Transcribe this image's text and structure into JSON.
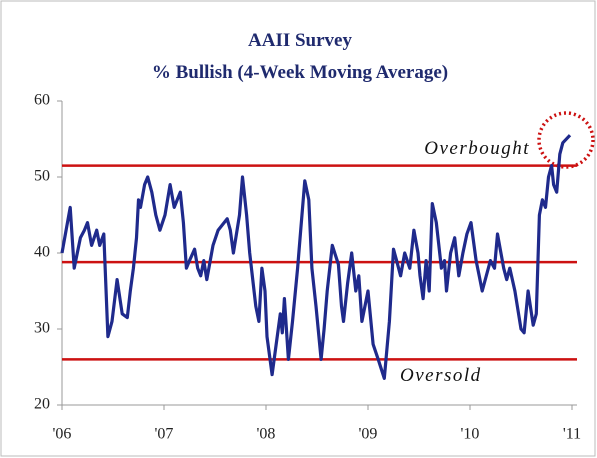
{
  "chart_data": {
    "type": "line",
    "title": "AAII Survey",
    "subtitle": "% Bullish (4-Week Moving Average)",
    "x": [
      2006,
      2006.08,
      2006.12,
      2006.18,
      2006.22,
      2006.25,
      2006.29,
      2006.34,
      2006.37,
      2006.41,
      2006.45,
      2006.49,
      2006.54,
      2006.59,
      2006.64,
      2006.67,
      2006.7,
      2006.73,
      2006.75,
      2006.77,
      2006.81,
      2006.84,
      2006.88,
      2006.92,
      2006.96,
      2007.01,
      2007.06,
      2007.1,
      2007.16,
      2007.19,
      2007.22,
      2007.25,
      2007.3,
      2007.33,
      2007.36,
      2007.39,
      2007.42,
      2007.48,
      2007.53,
      2007.62,
      2007.65,
      2007.68,
      2007.74,
      2007.77,
      2007.81,
      2007.84,
      2007.9,
      2007.93,
      2007.96,
      2007.99,
      2008.01,
      2008.06,
      2008.1,
      2008.14,
      2008.16,
      2008.18,
      2008.22,
      2008.26,
      2008.31,
      2008.34,
      2008.38,
      2008.42,
      2008.45,
      2008.49,
      2008.54,
      2008.57,
      2008.6,
      2008.65,
      2008.71,
      2008.74,
      2008.76,
      2008.8,
      2008.84,
      2008.88,
      2008.91,
      2008.94,
      2009.0,
      2009.05,
      2009.1,
      2009.16,
      2009.21,
      2009.25,
      2009.28,
      2009.32,
      2009.36,
      2009.41,
      2009.45,
      2009.49,
      2009.51,
      2009.54,
      2009.57,
      2009.6,
      2009.63,
      2009.67,
      2009.72,
      2009.75,
      2009.77,
      2009.81,
      2009.85,
      2009.89,
      2009.93,
      2009.97,
      2010.01,
      2010.06,
      2010.09,
      2010.12,
      2010.2,
      2010.24,
      2010.27,
      2010.33,
      2010.36,
      2010.39,
      2010.44,
      2010.5,
      2010.53,
      2010.57,
      2010.62,
      2010.65,
      2010.68,
      2010.71,
      2010.74,
      2010.77,
      2010.8,
      2010.82,
      2010.85,
      2010.88,
      2010.91,
      2010.98
    ],
    "series": [
      {
        "name": "% Bullish",
        "color": "#1f2a8c",
        "values": [
          40,
          46,
          38,
          42,
          43,
          44,
          41,
          43,
          41,
          42.5,
          29,
          31,
          36.5,
          32,
          31.5,
          35,
          38,
          42,
          47,
          46,
          49,
          50,
          48,
          45,
          43,
          45,
          49,
          46,
          48,
          44,
          38,
          39,
          40.5,
          38,
          37,
          39,
          36.5,
          41,
          43,
          44.5,
          43,
          40,
          45,
          50,
          45,
          40,
          33,
          31,
          38,
          35,
          29,
          24,
          28,
          32,
          29.5,
          34,
          26,
          31,
          38,
          43,
          49.5,
          47,
          38,
          33,
          26,
          30,
          35,
          41,
          38.5,
          33,
          31,
          36,
          40,
          35,
          37,
          31,
          35,
          28,
          26,
          23.5,
          31,
          40.5,
          39,
          37,
          40,
          38,
          43,
          40,
          37,
          34,
          39,
          35,
          46.5,
          44,
          38,
          39,
          35,
          40,
          42,
          37,
          40,
          42.5,
          44,
          39,
          37,
          35,
          39,
          38,
          42.5,
          38,
          36.5,
          38,
          35,
          30,
          29.5,
          35,
          30.5,
          32,
          45,
          47,
          46,
          50,
          51.5,
          49,
          48,
          53,
          54.5,
          55.5
        ]
      }
    ],
    "reference_lines": [
      {
        "value": 51.5,
        "label": "Overbought",
        "color": "#cc1111"
      },
      {
        "value": 38.8,
        "color": "#cc1111"
      },
      {
        "value": 26,
        "label": "Oversold",
        "color": "#cc1111"
      }
    ],
    "xlim": [
      2006,
      2011
    ],
    "xticks": [
      {
        "value": 2006,
        "label": "'06"
      },
      {
        "value": 2007,
        "label": "'07"
      },
      {
        "value": 2008,
        "label": "'08"
      },
      {
        "value": 2009,
        "label": "'09"
      },
      {
        "value": 2010,
        "label": "'10"
      },
      {
        "value": 2011,
        "label": "'11"
      }
    ],
    "ylim": [
      20,
      60
    ],
    "yticks": [
      20,
      30,
      40,
      50,
      60
    ],
    "grid": false
  }
}
